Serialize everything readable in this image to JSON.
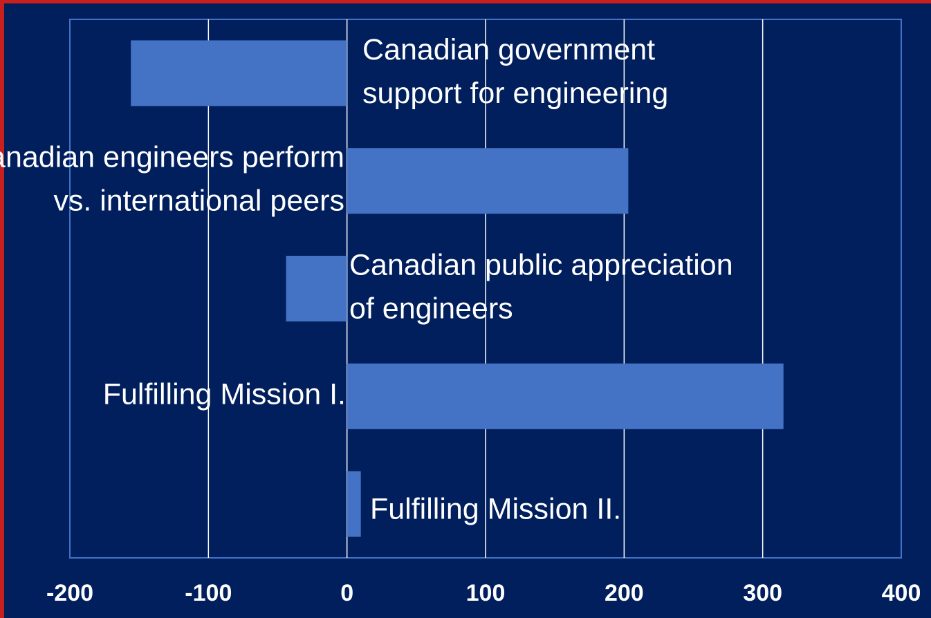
{
  "chart_data": {
    "type": "barh",
    "categories": [
      [
        "Canadian government",
        "support for engineering"
      ],
      [
        "Canadian engineers perform",
        "vs. international peers"
      ],
      [
        "Canadian public appreciation",
        "of engineers"
      ],
      [
        "Fulfilling Mission I."
      ],
      [
        "Fulfilling Mission II."
      ]
    ],
    "values": [
      -156,
      203,
      -44,
      315,
      10
    ],
    "color": "#4472c4",
    "xlim": [
      -200,
      400
    ],
    "xticks": [
      -200,
      -100,
      0,
      100,
      200,
      300,
      400
    ],
    "grid": true
  }
}
